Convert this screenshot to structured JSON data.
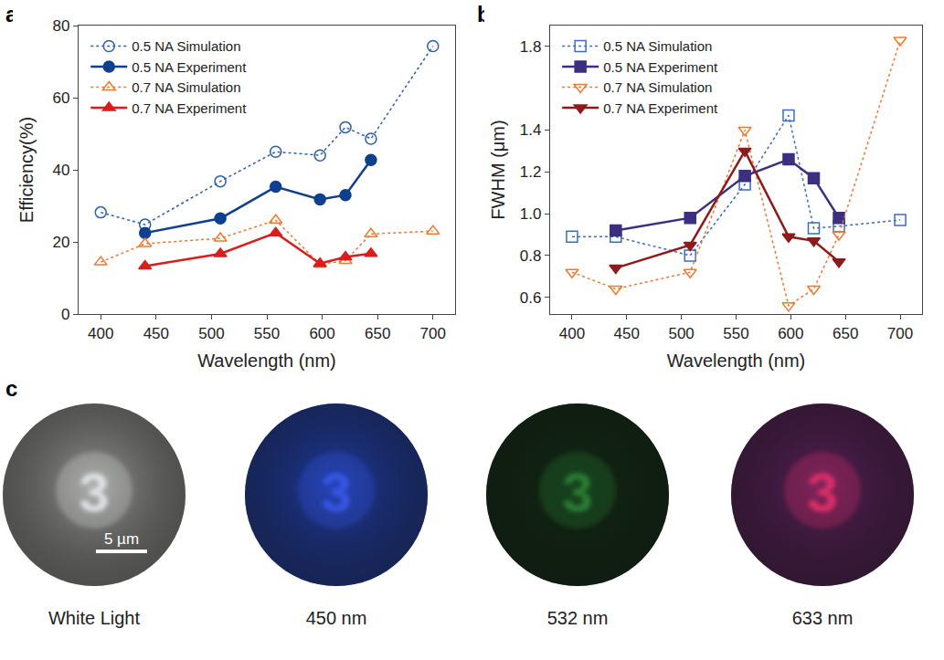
{
  "chart_data": [
    {
      "panel": "a",
      "type": "line",
      "x_label": "Wavelength (nm)",
      "y_label": "Efficiency(%)",
      "xlim": [
        380,
        720
      ],
      "xticks": [
        400,
        450,
        500,
        550,
        600,
        650,
        700
      ],
      "ylim": [
        0,
        80
      ],
      "yticks": [
        0,
        20,
        40,
        60,
        80
      ],
      "grid": false,
      "legend": "top left",
      "series": [
        {
          "name": "0.5 NA Simulation",
          "color": "#2c5fad",
          "marker": "circle-open",
          "line_style": "dot",
          "x": [
            400,
            440,
            508,
            558,
            598,
            621,
            644,
            700
          ],
          "values": [
            28.2,
            24.8,
            36.8,
            45.0,
            44.0,
            51.8,
            48.6,
            74.3
          ]
        },
        {
          "name": "0.5 NA Experiment",
          "color": "#0f3f8f",
          "marker": "circle",
          "line_style": "solid",
          "x": [
            440,
            508,
            558,
            598,
            621,
            644
          ],
          "values": [
            22.5,
            26.5,
            35.3,
            31.8,
            33.0,
            42.7
          ]
        },
        {
          "name": "0.7 NA Simulation",
          "color": "#f0782e",
          "marker": "triangle-up-open",
          "line_style": "dot",
          "x": [
            400,
            440,
            508,
            558,
            598,
            621,
            644,
            700
          ],
          "values": [
            14.4,
            19.5,
            21.0,
            26.0,
            13.8,
            14.8,
            22.2,
            23.0
          ]
        },
        {
          "name": "0.7 NA Experiment",
          "color": "#d91e1e",
          "marker": "triangle-up",
          "line_style": "solid",
          "x": [
            440,
            508,
            558,
            598,
            621,
            644
          ],
          "values": [
            13.3,
            16.7,
            22.5,
            14.0,
            15.8,
            16.8
          ]
        }
      ]
    },
    {
      "panel": "b",
      "type": "line",
      "x_label": "Wavelength (nm)",
      "y_label": "FWHM (μm)",
      "xlim": [
        380,
        720
      ],
      "xticks": [
        400,
        450,
        500,
        550,
        600,
        650,
        700
      ],
      "ylim": [
        0.52,
        1.9
      ],
      "yticks": [
        0.6,
        0.8,
        {
          "value": 1,
          "label": "1.0"
        },
        1.2,
        1.4,
        1.8
      ],
      "grid": false,
      "legend": "top left",
      "series": [
        {
          "name": "0.5 NA Simulation",
          "color": "#3b6cc0",
          "marker": "square-open",
          "line_style": "dot",
          "x": [
            400,
            440,
            508,
            558,
            598,
            621,
            644,
            700
          ],
          "values": [
            0.89,
            0.89,
            0.8,
            1.14,
            1.47,
            0.93,
            0.94,
            0.97
          ]
        },
        {
          "name": "0.5 NA Experiment",
          "color": "#3a2f80",
          "marker": "square",
          "line_style": "solid",
          "x": [
            440,
            508,
            558,
            598,
            621,
            644
          ],
          "values": [
            0.92,
            0.98,
            1.18,
            1.26,
            1.17,
            0.98
          ]
        },
        {
          "name": "0.7 NA Simulation",
          "color": "#f0782e",
          "marker": "triangle-down-open",
          "line_style": "dot",
          "x": [
            400,
            440,
            508,
            558,
            598,
            621,
            644,
            700
          ],
          "values": [
            0.72,
            0.64,
            0.72,
            1.4,
            0.56,
            0.64,
            0.9,
            1.83
          ]
        },
        {
          "name": "0.7 NA Experiment",
          "color": "#8e1b1b",
          "marker": "triangle-down",
          "line_style": "solid",
          "x": [
            440,
            508,
            558,
            598,
            621,
            644
          ],
          "values": [
            0.74,
            0.85,
            1.3,
            0.89,
            0.87,
            0.77
          ]
        }
      ]
    }
  ],
  "panel_c": {
    "label": "c",
    "object": "3",
    "scale_bar": "5 µm",
    "images": [
      {
        "caption": "White Light",
        "color": "#9a9a96",
        "object_color": "#e8eef0"
      },
      {
        "caption": "450 nm",
        "color": "#1e3ca8",
        "object_color": "#3a5cf0"
      },
      {
        "caption": "532 nm",
        "color": "#0f2a12",
        "object_color": "#2f8a3a"
      },
      {
        "caption": "633 nm",
        "color": "#5a1f5a",
        "object_color": "#f0306a"
      }
    ]
  }
}
